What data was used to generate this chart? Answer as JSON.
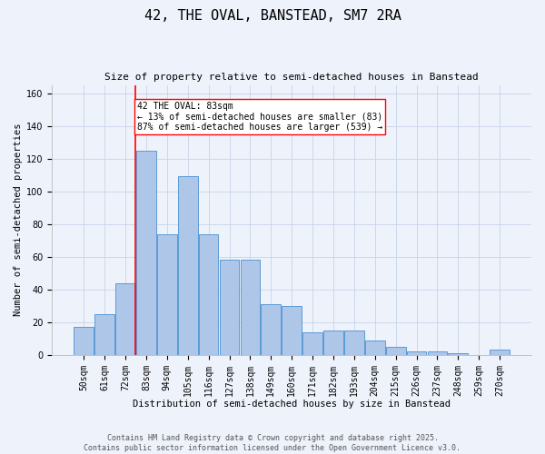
{
  "title1": "42, THE OVAL, BANSTEAD, SM7 2RA",
  "title2": "Size of property relative to semi-detached houses in Banstead",
  "xlabel": "Distribution of semi-detached houses by size in Banstead",
  "ylabel": "Number of semi-detached properties",
  "categories": [
    "50sqm",
    "61sqm",
    "72sqm",
    "83sqm",
    "94sqm",
    "105sqm",
    "116sqm",
    "127sqm",
    "138sqm",
    "149sqm",
    "160sqm",
    "171sqm",
    "182sqm",
    "193sqm",
    "204sqm",
    "215sqm",
    "226sqm",
    "237sqm",
    "248sqm",
    "259sqm",
    "270sqm"
  ],
  "values": [
    17,
    25,
    44,
    125,
    74,
    109,
    74,
    58,
    58,
    31,
    30,
    14,
    15,
    15,
    9,
    5,
    2,
    2,
    1,
    0,
    3
  ],
  "bar_color": "#aec6e8",
  "bar_edgecolor": "#5b9bd5",
  "highlight_index": 3,
  "highlight_color": "red",
  "annotation_title": "42 THE OVAL: 83sqm",
  "annotation_line1": "← 13% of semi-detached houses are smaller (83)",
  "annotation_line2": "87% of semi-detached houses are larger (539) →",
  "ylim": [
    0,
    165
  ],
  "yticks": [
    0,
    20,
    40,
    60,
    80,
    100,
    120,
    140,
    160
  ],
  "background_color": "#eef2fb",
  "footer": "Contains HM Land Registry data © Crown copyright and database right 2025.\nContains public sector information licensed under the Open Government Licence v3.0.",
  "grid_color": "#c8d4e8",
  "title1_fontsize": 11,
  "title2_fontsize": 8,
  "xlabel_fontsize": 7.5,
  "ylabel_fontsize": 7.5,
  "tick_fontsize": 7,
  "annot_fontsize": 7,
  "footer_fontsize": 6
}
